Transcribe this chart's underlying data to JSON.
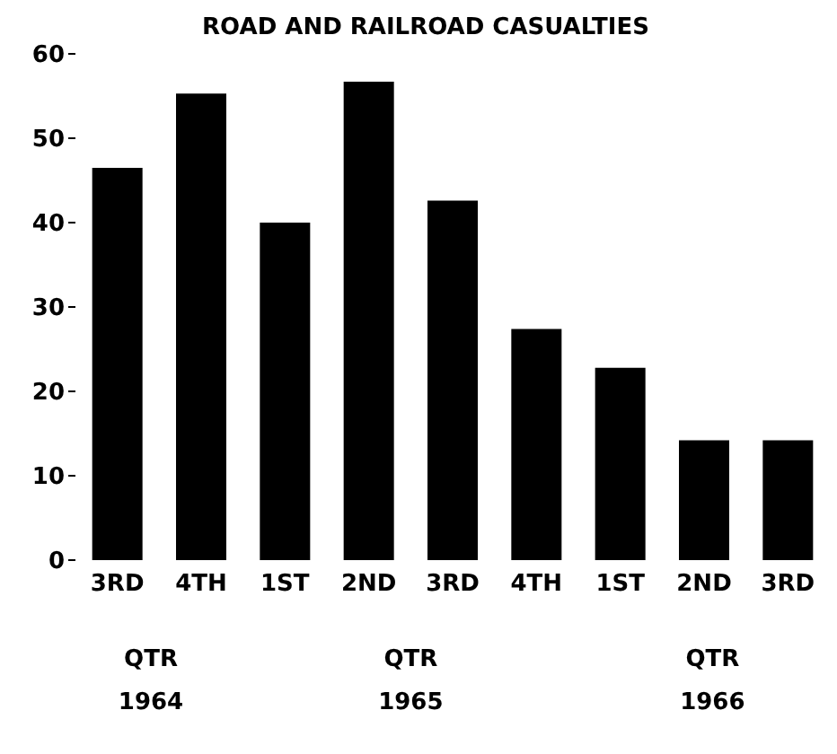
{
  "chart_data": {
    "type": "bar",
    "title": "ROAD AND RAILROAD CASUALTIES",
    "categories": [
      "3RD",
      "4TH",
      "1ST",
      "2ND",
      "3RD",
      "4TH",
      "1ST",
      "2ND",
      "3RD"
    ],
    "values": [
      46.5,
      55.3,
      40,
      56.7,
      42.6,
      27.4,
      22.8,
      14.2,
      14.2
    ],
    "color": "#000000",
    "ylim": [
      0,
      60
    ],
    "yticks": [
      0,
      10,
      20,
      30,
      40,
      50,
      60
    ],
    "annotations": [
      "QTR\n1964",
      "QTR\n1965",
      "QTR\n1966"
    ]
  }
}
